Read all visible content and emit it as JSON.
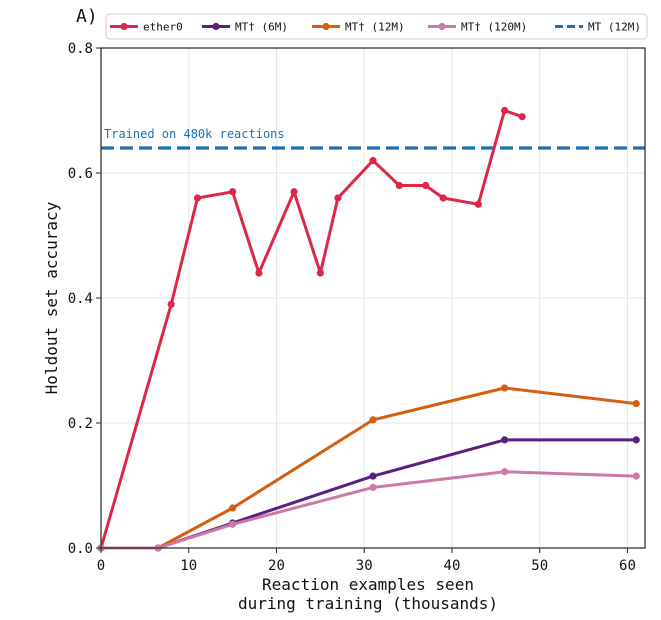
{
  "panel_label": "A)",
  "chart_data": {
    "type": "line",
    "xlabel": [
      "Reaction examples seen",
      "during training (thousands)"
    ],
    "ylabel": "Holdout set accuracy",
    "xlim": [
      0,
      62
    ],
    "ylim": [
      0,
      0.8
    ],
    "xticks": [
      0,
      10,
      20,
      30,
      40,
      50,
      60
    ],
    "yticks": [
      0,
      0.2,
      0.4,
      0.6,
      0.8
    ],
    "xtick_labels": [
      "0",
      "10",
      "20",
      "30",
      "40",
      "50",
      "60"
    ],
    "ytick_labels": [
      "0.0",
      "0.2",
      "0.4",
      "0.6",
      "0.8"
    ],
    "grid": true,
    "legend_position": "top",
    "series": [
      {
        "name": "ether0",
        "color": "#dc2747",
        "x": [
          0,
          8,
          11,
          15,
          18,
          22,
          25,
          27,
          31,
          34,
          37,
          39,
          43,
          46,
          48
        ],
        "y": [
          0.0,
          0.39,
          0.56,
          0.57,
          0.44,
          0.57,
          0.44,
          0.56,
          0.62,
          0.58,
          0.58,
          0.56,
          0.55,
          0.7,
          0.69
        ]
      },
      {
        "name": "MT† (6M)",
        "color": "#5a1f7d",
        "x": [
          0,
          6.5,
          15,
          31,
          46,
          61
        ],
        "y": [
          0.0,
          0.0,
          0.04,
          0.115,
          0.173,
          0.173
        ]
      },
      {
        "name": "MT† (12M)",
        "color": "#d55e0f",
        "x": [
          0,
          6.5,
          15,
          31,
          46,
          61
        ],
        "y": [
          0.0,
          0.0,
          0.064,
          0.205,
          0.256,
          0.231
        ]
      },
      {
        "name": "MT† (120M)",
        "color": "#cc79a7",
        "x": [
          0,
          6.5,
          15,
          31,
          46,
          61
        ],
        "y": [
          0.0,
          0.0,
          0.038,
          0.097,
          0.122,
          0.115
        ]
      }
    ],
    "reference_lines": [
      {
        "name": "MT (12M)",
        "y": 0.64,
        "color": "#1772b5",
        "style": "dashed",
        "annotation": "Trained on 480k reactions"
      }
    ]
  }
}
